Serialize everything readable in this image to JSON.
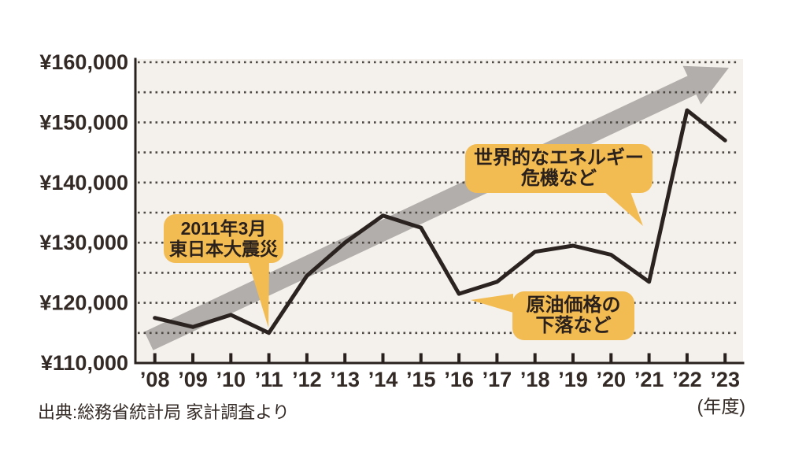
{
  "page": {
    "source_note": "出典:総務省統計局 家計調査より",
    "x_axis_unit_label": "(年度)"
  },
  "chart_data": {
    "type": "line",
    "title": "",
    "categories": [
      "’08",
      "’09",
      "’10",
      "’11",
      "’12",
      "’13",
      "’14",
      "’15",
      "’16",
      "’17",
      "’18",
      "’19",
      "’20",
      "’21",
      "’22",
      "’23"
    ],
    "values": [
      117500,
      116000,
      118000,
      115000,
      124500,
      130000,
      134500,
      132500,
      121500,
      123500,
      128500,
      129500,
      128000,
      123500,
      152000,
      147000
    ],
    "xlabel": "(年度)",
    "ylabel": "",
    "ylim": [
      110000,
      160000
    ],
    "y_ticks": [
      110000,
      120000,
      130000,
      140000,
      150000,
      160000
    ],
    "y_tick_prefix": "¥",
    "grid_interval": 5000,
    "grid_style": "dotted horizontal lines every 5000 yen",
    "legend": "none",
    "line_color": "#2b2320",
    "trend_arrow": "gray upward arrow from lower-left to upper-right",
    "annotations": [
      {
        "line1": "2011年3月",
        "line2": "東日本大震災",
        "points_to": "’11"
      },
      {
        "line1": "世界的なエネルギー",
        "line2": "危機など",
        "points_to": "’21-’22 rise"
      },
      {
        "line1": "原油価格の",
        "line2": "下落など",
        "points_to": "’16 dip"
      }
    ],
    "source": "出典:総務省統計局 家計調査より",
    "colors": {
      "plot_background": "#f4f1ec",
      "grid_dots": "#4e4843",
      "axis": "#29211d",
      "line": "#2b2320",
      "arrow": "#b1aeab",
      "callout_bg": "#f3bc53",
      "text": "#332a26"
    }
  }
}
